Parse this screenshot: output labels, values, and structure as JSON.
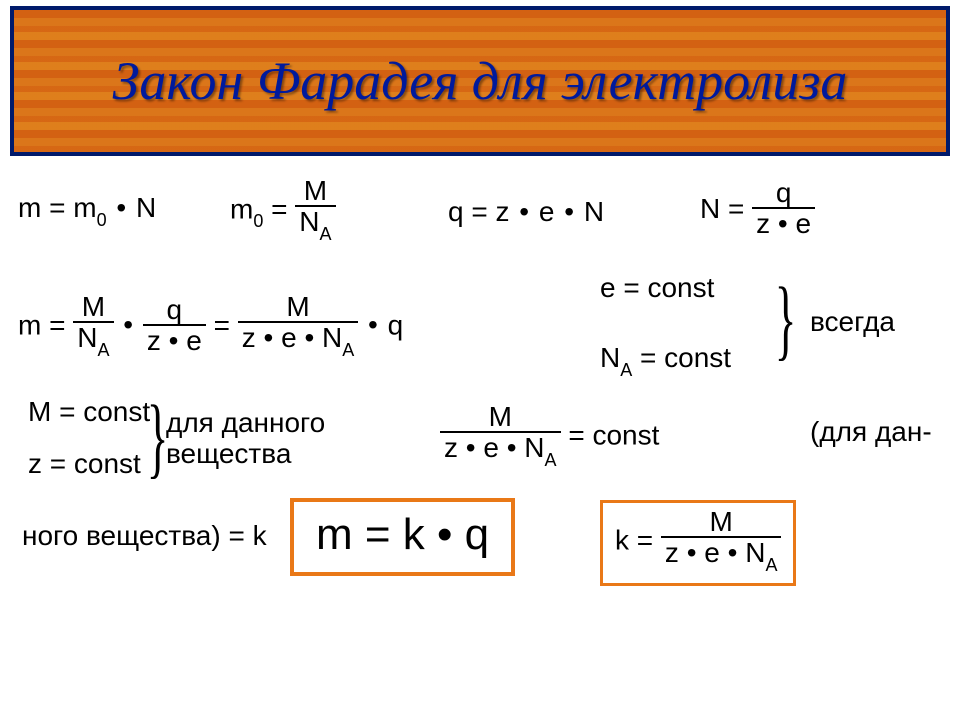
{
  "title": "Закон Фарадея для электролиза",
  "colors": {
    "border": "#001a6b",
    "title_text": "#001a9c",
    "accent": "#e97817",
    "bg": "#ffffff",
    "wood": "#aa7a47"
  },
  "font": {
    "title_family": "Times New Roman",
    "title_italic": true,
    "title_size_pt": 40,
    "body_family": "Arial",
    "body_size_pt": 21,
    "big_size_pt": 33
  },
  "row1": {
    "eq1": {
      "lhs": "m =",
      "rhs_a": "m",
      "rhs_a_sub": "0",
      "dot": "•",
      "rhs_b": "N"
    },
    "eq2": {
      "lhs_a": "m",
      "lhs_sub": "0",
      "lhs_b": " =",
      "num": "M",
      "den_a": "N",
      "den_sub": "A"
    },
    "eq3": {
      "lhs": "q =",
      "a": "z",
      "b": "e",
      "c": "N",
      "dot": "•"
    },
    "eq4": {
      "lhs": "N =",
      "num": "q",
      "den": "z • e"
    }
  },
  "row2": {
    "eqlong": {
      "lhs": "m =",
      "f1_num": "M",
      "f1_den_a": "N",
      "f1_den_sub": "A",
      "dot": "•",
      "f2_num": "q",
      "f2_den": "z • e",
      "mid": "=",
      "f3_num": "M",
      "f3_den": "z • e • N",
      "f3_den_sub": "A",
      "tail": "q"
    },
    "econst": "e = const",
    "naconst_a": "N",
    "naconst_sub": "A",
    "naconst_b": " = const",
    "always": "всегда"
  },
  "row3": {
    "mconst": "M = const",
    "zconst": "z = const",
    "for_substance_l1": "для данного",
    "for_substance_l2": "вещества",
    "fraceq": {
      "num": "M",
      "den": "z • e • N",
      "den_sub": "A",
      "rhs": " = const"
    },
    "paren": "(для дан-"
  },
  "row4": {
    "k_line": "ного  вещества) = k",
    "big": "m = k • q",
    "kdef": {
      "lhs": "k =",
      "num": "M",
      "den": "z • e • N",
      "den_sub": "A"
    }
  }
}
